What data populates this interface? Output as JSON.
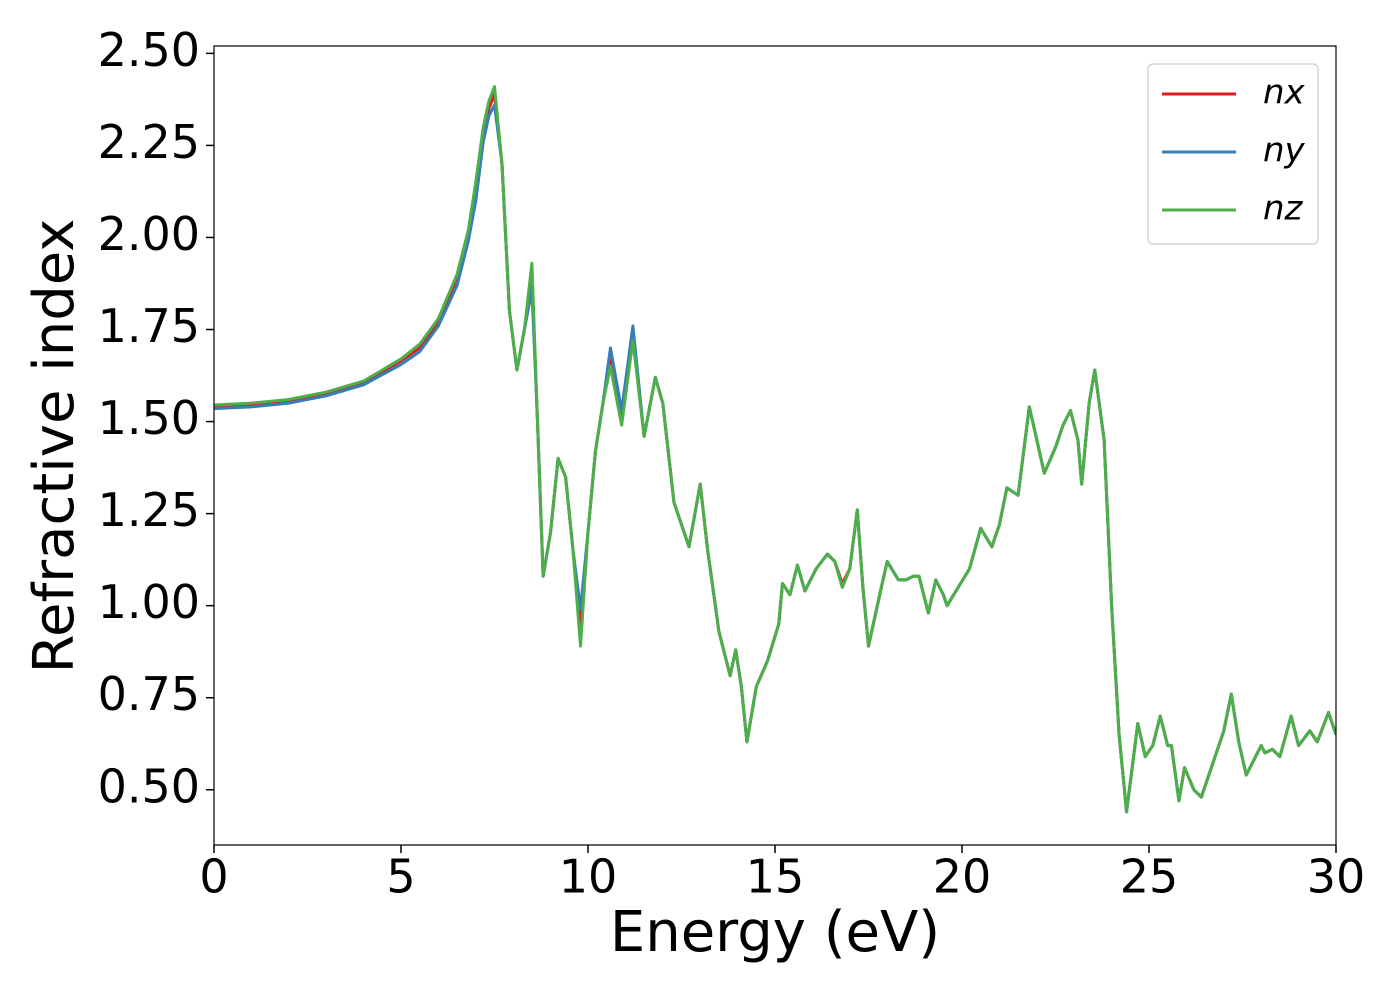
{
  "chart_data": {
    "type": "line",
    "xlabel": "Energy (eV)",
    "ylabel": "Refractive index",
    "xlim": [
      0,
      30
    ],
    "ylim": [
      0.35,
      2.52
    ],
    "xticks": [
      0,
      5,
      10,
      15,
      20,
      25,
      30
    ],
    "yticks": [
      {
        "value": 0.5,
        "label": "0.50"
      },
      0.75,
      {
        "value": 1,
        "label": "1.00"
      },
      1.25,
      {
        "value": 1.5,
        "label": "1.50"
      },
      1.75,
      {
        "value": 2,
        "label": "2.00"
      },
      2.25,
      {
        "value": 2.5,
        "label": "2.50"
      }
    ],
    "grid": false,
    "legend": "upper right",
    "x": [
      0,
      1,
      2,
      3,
      4,
      5,
      5.5,
      6,
      6.5,
      6.8,
      7,
      7.2,
      7.35,
      7.5,
      7.7,
      7.9,
      8.1,
      8.3,
      8.5,
      8.65,
      8.8,
      9,
      9.2,
      9.4,
      9.6,
      9.8,
      10,
      10.2,
      10.4,
      10.6,
      10.9,
      11.2,
      11.5,
      11.8,
      12,
      12.3,
      12.7,
      13,
      13.2,
      13.5,
      13.8,
      13.95,
      14.1,
      14.25,
      14.5,
      14.8,
      15.1,
      15.2,
      15.4,
      15.6,
      15.8,
      16.1,
      16.4,
      16.6,
      16.8,
      17,
      17.2,
      17.35,
      17.5,
      17.8,
      18,
      18.3,
      18.5,
      18.7,
      18.85,
      19.1,
      19.3,
      19.5,
      19.6,
      19.9,
      20.2,
      20.5,
      20.8,
      21,
      21.2,
      21.5,
      21.8,
      22,
      22.2,
      22.5,
      22.7,
      22.9,
      23.1,
      23.2,
      23.4,
      23.55,
      23.8,
      24,
      24.2,
      24.4,
      24.6,
      24.7,
      24.9,
      25.1,
      25.3,
      25.5,
      25.6,
      25.8,
      25.95,
      26.2,
      26.4,
      26.7,
      27,
      27.2,
      27.4,
      27.6,
      27.9,
      28,
      28.1,
      28.3,
      28.5,
      28.8,
      29,
      29.3,
      29.5,
      29.8,
      30
    ],
    "series": [
      {
        "name": "nx",
        "color": "#e41a1c",
        "values": [
          1.54,
          1.545,
          1.555,
          1.575,
          1.605,
          1.665,
          1.7,
          1.77,
          1.88,
          2.0,
          2.12,
          2.28,
          2.35,
          2.39,
          2.2,
          1.8,
          1.64,
          1.75,
          1.89,
          1.5,
          1.08,
          1.2,
          1.4,
          1.35,
          1.15,
          0.94,
          1.2,
          1.42,
          1.55,
          1.68,
          1.51,
          1.74,
          1.46,
          1.62,
          1.55,
          1.28,
          1.16,
          1.33,
          1.15,
          0.93,
          0.81,
          0.88,
          0.78,
          0.63,
          0.78,
          0.85,
          0.95,
          1.06,
          1.03,
          1.11,
          1.04,
          1.1,
          1.14,
          1.12,
          1.06,
          1.1,
          1.26,
          1.05,
          0.89,
          1.03,
          1.12,
          1.07,
          1.07,
          1.08,
          1.08,
          0.98,
          1.07,
          1.03,
          1.0,
          1.05,
          1.1,
          1.21,
          1.16,
          1.22,
          1.32,
          1.3,
          1.54,
          1.45,
          1.36,
          1.43,
          1.49,
          1.53,
          1.45,
          1.33,
          1.55,
          1.64,
          1.45,
          1.0,
          0.65,
          0.44,
          0.6,
          0.68,
          0.59,
          0.62,
          0.7,
          0.62,
          0.62,
          0.47,
          0.56,
          0.5,
          0.48,
          0.57,
          0.66,
          0.76,
          0.63,
          0.54,
          0.6,
          0.62,
          0.6,
          0.61,
          0.59,
          0.7,
          0.62,
          0.66,
          0.63,
          0.71,
          0.65
        ]
      },
      {
        "name": "ny",
        "color": "#377eb8",
        "values": [
          1.535,
          1.54,
          1.55,
          1.57,
          1.6,
          1.655,
          1.69,
          1.76,
          1.87,
          1.99,
          2.1,
          2.26,
          2.33,
          2.36,
          2.2,
          1.8,
          1.64,
          1.75,
          1.86,
          1.5,
          1.08,
          1.2,
          1.4,
          1.35,
          1.15,
          0.99,
          1.2,
          1.42,
          1.55,
          1.7,
          1.53,
          1.76,
          1.46,
          1.62,
          1.55,
          1.28,
          1.16,
          1.33,
          1.15,
          0.93,
          0.81,
          0.88,
          0.78,
          0.63,
          0.78,
          0.85,
          0.95,
          1.06,
          1.03,
          1.11,
          1.04,
          1.1,
          1.14,
          1.12,
          1.05,
          1.1,
          1.26,
          1.05,
          0.89,
          1.03,
          1.12,
          1.07,
          1.07,
          1.08,
          1.08,
          0.98,
          1.07,
          1.03,
          1.0,
          1.05,
          1.1,
          1.21,
          1.16,
          1.22,
          1.32,
          1.3,
          1.54,
          1.45,
          1.36,
          1.43,
          1.49,
          1.53,
          1.45,
          1.33,
          1.55,
          1.64,
          1.45,
          1.0,
          0.65,
          0.44,
          0.6,
          0.68,
          0.59,
          0.62,
          0.7,
          0.62,
          0.62,
          0.47,
          0.56,
          0.5,
          0.48,
          0.57,
          0.66,
          0.76,
          0.63,
          0.54,
          0.6,
          0.62,
          0.6,
          0.61,
          0.59,
          0.7,
          0.62,
          0.66,
          0.63,
          0.71,
          0.65
        ]
      },
      {
        "name": "nz",
        "color": "#4daf4a",
        "values": [
          1.545,
          1.55,
          1.56,
          1.58,
          1.61,
          1.67,
          1.71,
          1.78,
          1.9,
          2.02,
          2.15,
          2.3,
          2.37,
          2.41,
          2.2,
          1.8,
          1.64,
          1.75,
          1.93,
          1.5,
          1.08,
          1.2,
          1.4,
          1.35,
          1.15,
          0.89,
          1.2,
          1.42,
          1.55,
          1.65,
          1.49,
          1.72,
          1.46,
          1.62,
          1.55,
          1.28,
          1.16,
          1.33,
          1.15,
          0.93,
          0.81,
          0.88,
          0.78,
          0.63,
          0.78,
          0.85,
          0.95,
          1.06,
          1.03,
          1.11,
          1.04,
          1.1,
          1.14,
          1.12,
          1.05,
          1.1,
          1.26,
          1.05,
          0.89,
          1.03,
          1.12,
          1.07,
          1.07,
          1.08,
          1.08,
          0.98,
          1.07,
          1.03,
          1.0,
          1.05,
          1.1,
          1.21,
          1.16,
          1.22,
          1.32,
          1.3,
          1.54,
          1.45,
          1.36,
          1.43,
          1.49,
          1.53,
          1.45,
          1.33,
          1.55,
          1.64,
          1.45,
          1.0,
          0.65,
          0.44,
          0.6,
          0.68,
          0.59,
          0.62,
          0.7,
          0.62,
          0.62,
          0.47,
          0.56,
          0.5,
          0.48,
          0.57,
          0.66,
          0.76,
          0.63,
          0.54,
          0.6,
          0.62,
          0.6,
          0.61,
          0.59,
          0.7,
          0.62,
          0.66,
          0.63,
          0.71,
          0.65
        ]
      }
    ]
  }
}
